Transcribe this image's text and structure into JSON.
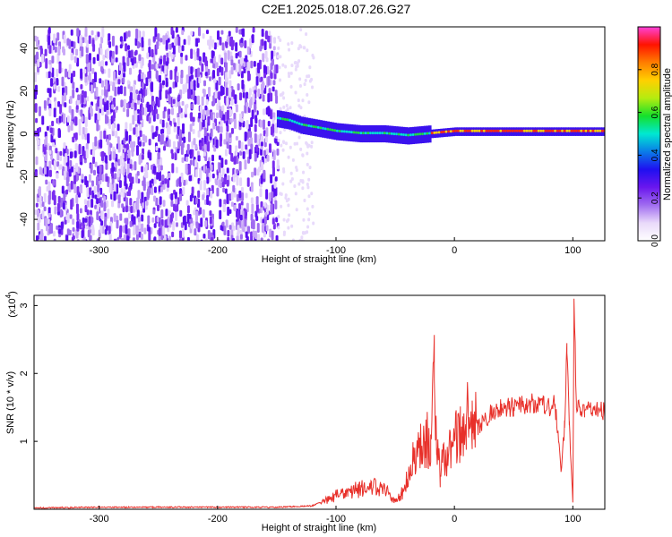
{
  "title": "C2E1.2025.018.07.26.G27",
  "chart_data": [
    {
      "type": "heatmap",
      "xlabel": "Height of straight line (km)",
      "ylabel": "Frequency (Hz)",
      "xlim": [
        -355,
        127
      ],
      "ylim": [
        -50,
        50
      ],
      "x_ticks": [
        -300,
        -200,
        -100,
        0,
        100
      ],
      "y_ticks": [
        -40,
        -20,
        0,
        20,
        40
      ],
      "colorbar": {
        "label": "Normalized spectral amplitude",
        "range": [
          0,
          1
        ],
        "ticks": [
          "0.0",
          "0.2",
          "0.4",
          "0.6",
          "0.8"
        ],
        "colormap": [
          "#ffffff",
          "#e9d9fa",
          "#a06cf0",
          "#6a16ee",
          "#1f10f0",
          "#0a7de8",
          "#00e8d2",
          "#15e02b",
          "#b5ec10",
          "#ffd000",
          "#ff7d00",
          "#ff1300",
          "#ff40d8"
        ]
      },
      "signal_ridge": [
        {
          "x": -150,
          "y": 7
        },
        {
          "x": -140,
          "y": 6
        },
        {
          "x": -130,
          "y": 4
        },
        {
          "x": -120,
          "y": 3
        },
        {
          "x": -110,
          "y": 2
        },
        {
          "x": -100,
          "y": 1
        },
        {
          "x": -80,
          "y": 0
        },
        {
          "x": -60,
          "y": 0
        },
        {
          "x": -40,
          "y": -1
        },
        {
          "x": -20,
          "y": 0
        },
        {
          "x": 0,
          "y": 1
        },
        {
          "x": 20,
          "y": 1
        },
        {
          "x": 40,
          "y": 1
        },
        {
          "x": 60,
          "y": 1
        },
        {
          "x": 80,
          "y": 1
        },
        {
          "x": 100,
          "y": 1
        },
        {
          "x": 127,
          "y": 1
        }
      ]
    },
    {
      "type": "line",
      "xlabel": "Height of straight line (km)",
      "ylabel": "SNR (10 * v/v)",
      "y_multiplier": "(x10^4)",
      "xlim": [
        -355,
        127
      ],
      "ylim": [
        0,
        3.15
      ],
      "x_ticks": [
        -300,
        -200,
        -100,
        0,
        100
      ],
      "y_ticks": [
        1,
        2,
        3
      ],
      "color": "#e8302a",
      "series": [
        {
          "x": [
            -355,
            -300,
            -250,
            -200,
            -150,
            -120,
            -110,
            -100,
            -90,
            -80,
            -70,
            -60,
            -55,
            -50,
            -45,
            -40,
            -35,
            -30,
            -25,
            -20,
            -17,
            -15,
            -12,
            -10,
            -5,
            0,
            5,
            10,
            15,
            20,
            25,
            30,
            35,
            40,
            50,
            60,
            70,
            80,
            85,
            88,
            90,
            93,
            95,
            97,
            100,
            101,
            103,
            110,
            127
          ],
          "y": [
            0.02,
            0.03,
            0.03,
            0.03,
            0.03,
            0.05,
            0.12,
            0.2,
            0.25,
            0.3,
            0.32,
            0.3,
            0.22,
            0.12,
            0.2,
            0.45,
            0.7,
            0.9,
            1.0,
            1.1,
            1.9,
            0.9,
            0.5,
            0.7,
            0.8,
            1.0,
            1.2,
            1.3,
            1.6,
            1.2,
            1.3,
            1.4,
            1.45,
            1.5,
            1.5,
            1.55,
            1.55,
            1.5,
            1.55,
            1.0,
            0.55,
            1.2,
            2.3,
            1.3,
            0.1,
            3.1,
            1.5,
            1.45,
            1.45
          ]
        }
      ]
    }
  ]
}
